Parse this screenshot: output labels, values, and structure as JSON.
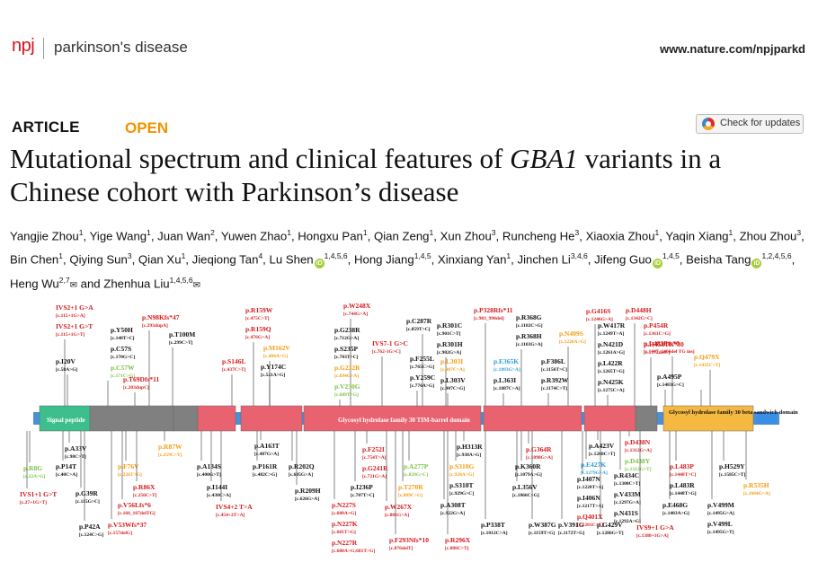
{
  "header": {
    "logo": "npj",
    "journal": "parkinson's disease",
    "url": "www.nature.com/npjparkd"
  },
  "article": {
    "type": "ARTICLE",
    "access": "OPEN",
    "check_updates": "Check for updates"
  },
  "title_parts": [
    "Mutational spectrum and clinical features of ",
    "GBA1",
    " variants in a Chinese cohort with Parkinson’s disease"
  ],
  "authors": [
    {
      "name": "Yangjie Zhou",
      "aff": "1"
    },
    {
      "name": "Yige Wang",
      "aff": "1"
    },
    {
      "name": "Juan Wan",
      "aff": "2"
    },
    {
      "name": "Yuwen Zhao",
      "aff": "1"
    },
    {
      "name": "Hongxu Pan",
      "aff": "1"
    },
    {
      "name": "Qian Zeng",
      "aff": "1"
    },
    {
      "name": "Xun Zhou",
      "aff": "3"
    },
    {
      "name": "Runcheng He",
      "aff": "3"
    },
    {
      "name": "Xiaoxia Zhou",
      "aff": "1"
    },
    {
      "name": "Yaqin Xiang",
      "aff": "1"
    },
    {
      "name": "Zhou Zhou",
      "aff": "3"
    },
    {
      "name": "Bin Chen",
      "aff": "1"
    },
    {
      "name": "Qiying Sun",
      "aff": "3"
    },
    {
      "name": "Qian Xu",
      "aff": "1"
    },
    {
      "name": "Jieqiong Tan",
      "aff": "4"
    },
    {
      "name": "Lu Shen",
      "aff": "1,4,5,6",
      "orcid": true
    },
    {
      "name": "Hong Jiang",
      "aff": "1,4,5"
    },
    {
      "name": "Xinxiang Yan",
      "aff": "1"
    },
    {
      "name": "Jinchen Li",
      "aff": "3,4,6"
    },
    {
      "name": "Jifeng Guo",
      "aff": "1,4,5",
      "orcid": true
    },
    {
      "name": "Beisha Tang",
      "aff": "1,2,4,5,6",
      "orcid": true
    },
    {
      "name": "Heng Wu",
      "aff": "2,7",
      "mail": true
    },
    {
      "name": "Zhenhua Liu",
      "aff": "1,4,5,6",
      "mail": true,
      "last": true
    }
  ],
  "author_sep": ", ",
  "author_and": "and ",
  "figure": {
    "colors": {
      "red": "#d7191c",
      "black": "#111111",
      "orange": "#f39c12",
      "green": "#7ac143",
      "blue": "#2a9fd6",
      "teal": "#3cbf8c",
      "gray": "#808080",
      "pink": "#e8626f",
      "ochre": "#f5b942",
      "steel": "#4a90d9"
    },
    "domains": [
      {
        "label": "Signal peptide",
        "color": "teal"
      },
      {
        "label": "Glycosyl hydrolase family 30 TIM-barrel domain",
        "color": "pink"
      },
      {
        "label": "Glycosyl hydrolase family 30 beta sandwich domain",
        "color": "ochre"
      }
    ],
    "variants_top": [
      {
        "p": "IVS2+1 G>A",
        "c": "[c.115+1G>A]",
        "col": "red"
      },
      {
        "p": "IVS2+1 G>T",
        "c": "[c.115+1G>T]",
        "col": "red"
      },
      {
        "p": "p.I20V",
        "c": "[c.58A>G]",
        "col": "black"
      },
      {
        "p": "p.Y50H",
        "c": "[c.148T>C]",
        "col": "black"
      },
      {
        "p": "p.C57S",
        "c": "[c.170G>C]",
        "col": "black"
      },
      {
        "p": "p.C57W",
        "c": "[c.171C>G]",
        "col": "green"
      },
      {
        "p": "p.N98Kfs*47",
        "c": "[c.293dupA]",
        "col": "red"
      },
      {
        "p": "p.T100M",
        "c": "[c.299C>T]",
        "col": "black"
      },
      {
        "p": "p.T69Dfs*11",
        "c": "[c.203dupC]",
        "col": "red"
      },
      {
        "p": "p.R159W",
        "c": "[c.475C>T]",
        "col": "red"
      },
      {
        "p": "p.R159Q",
        "c": "[c.476G>A]",
        "col": "red"
      },
      {
        "p": "p.M162V",
        "c": "[c.484A>G]",
        "col": "orange"
      },
      {
        "p": "p.S146L",
        "c": "[c.437C>T]",
        "col": "red"
      },
      {
        "p": "p.Y174C",
        "c": "[c.521A>G]",
        "col": "black"
      },
      {
        "p": "p.W248X",
        "c": "[c.744G>A]",
        "col": "red"
      },
      {
        "p": "p.G238R",
        "c": "[c.712G>A]",
        "col": "black"
      },
      {
        "p": "p.S235P",
        "c": "[c.703T>C]",
        "col": "black"
      },
      {
        "p": "p.G232R",
        "c": "[c.694G>A]",
        "col": "orange"
      },
      {
        "p": "p.V230G",
        "c": "[c.689T>G]",
        "col": "green"
      },
      {
        "p": "p.C287R",
        "c": "[c.859T>C]",
        "col": "black"
      },
      {
        "p": "IVS7-1 G>C",
        "c": "[c.762-1G>C]",
        "col": "red"
      },
      {
        "p": "p.F255L",
        "c": "[c.765C>G]",
        "col": "black"
      },
      {
        "p": "p.Y259C",
        "c": "[c.776A>G]",
        "col": "black"
      },
      {
        "p": "p.R301C",
        "c": "[c.901C>T]",
        "col": "black"
      },
      {
        "p": "p.R301H",
        "c": "[c.902G>A]",
        "col": "black"
      },
      {
        "p": "p.L303I",
        "c": "[c.907C>A]",
        "col": "orange"
      },
      {
        "p": "p.L303V",
        "c": "[c.907C>G]",
        "col": "black"
      },
      {
        "p": "p.P328Rfs*11",
        "c": "[c.983_990del]",
        "col": "red"
      },
      {
        "p": "p.R368G",
        "c": "[c.1102C>G]",
        "col": "black"
      },
      {
        "p": "p.R368H",
        "c": "[c.1103G>A]",
        "col": "black"
      },
      {
        "p": "p.E365K",
        "c": "[c.1093G>A]",
        "col": "blue"
      },
      {
        "p": "p.L363I",
        "c": "[c.1087C>A]",
        "col": "black"
      },
      {
        "p": "p.F386L",
        "c": "[c.1156T>C]",
        "col": "black"
      },
      {
        "p": "p.R392W",
        "c": "[c.1174C>T]",
        "col": "black"
      },
      {
        "p": "p.N409S",
        "c": "[c.1226A>G]",
        "col": "orange"
      },
      {
        "p": "p.G416S",
        "c": "[c.1246G>A]",
        "col": "red"
      },
      {
        "p": "p.W417R",
        "c": "[c.1249T>A]",
        "col": "black"
      },
      {
        "p": "p.N421D",
        "c": "[c.1261A>G]",
        "col": "black"
      },
      {
        "p": "p.L422R",
        "c": "[c.1265T>G]",
        "col": "black"
      },
      {
        "p": "p.N425K",
        "c": "[c.1275C>A]",
        "col": "black"
      },
      {
        "p": "p.D448H",
        "c": "[c.1342G>C]",
        "col": "red"
      },
      {
        "p": "p.P454R",
        "c": "[c.1361C>G]",
        "col": "red"
      },
      {
        "p": "p.H458Tfs*30",
        "c": "[c.1372delC]",
        "col": "red"
      },
      {
        "p": "p.L483Pfs*0",
        "c": "[c.1447_1466del TG ins]",
        "col": "red"
      },
      {
        "p": "p.Q479X",
        "c": "[c.1435C>T]",
        "col": "orange"
      },
      {
        "p": "p.A495P",
        "c": "[c.1483G>C]",
        "col": "black"
      }
    ],
    "variants_bottom": [
      {
        "p": "p.R8G",
        "c": "[c.22A>G]",
        "col": "green"
      },
      {
        "p": "p.A33V",
        "c": "[c.98C>T]",
        "col": "black"
      },
      {
        "p": "p.P14T",
        "c": "[c.40C>A]",
        "col": "black"
      },
      {
        "p": "p.G39R",
        "c": "[c.115G>C]",
        "col": "black"
      },
      {
        "p": "IVS1+1 G>T",
        "c": "[c.27+1G>T]",
        "col": "red"
      },
      {
        "p": "p.P42A",
        "c": "[c.124C>G]",
        "col": "black"
      },
      {
        "p": "p.F76V",
        "c": "[c.226T>G]",
        "col": "orange"
      },
      {
        "p": "p.R86X",
        "c": "[c.256C>T]",
        "col": "red"
      },
      {
        "p": "p.V56Lfs*6",
        "c": "[c.166_167delTG]",
        "col": "red"
      },
      {
        "p": "p.V53Wfs*37",
        "c": "[c.157delG]",
        "col": "red"
      },
      {
        "p": "p.R87W",
        "c": "[c.259C>T]",
        "col": "orange"
      },
      {
        "p": "p.A134S",
        "c": "[c.400G>T]",
        "col": "black"
      },
      {
        "p": "p.I144I",
        "c": "[c.430C>A]",
        "col": "black"
      },
      {
        "p": "IVS4+2 T>A",
        "c": "[c.454+2T>A]",
        "col": "red"
      },
      {
        "p": "p.A163T",
        "c": "[c.487G>A]",
        "col": "black"
      },
      {
        "p": "p.P161R",
        "c": "[c.482C>G]",
        "col": "black"
      },
      {
        "p": "p.R202Q",
        "c": "[c.605G>A]",
        "col": "black"
      },
      {
        "p": "p.R209H",
        "c": "[c.626G>A]",
        "col": "black"
      },
      {
        "p": "p.N227S",
        "c": "[c.680A>G]",
        "col": "red"
      },
      {
        "p": "p.N227K",
        "c": "[c.681T>G]",
        "col": "red"
      },
      {
        "p": "p.N227R",
        "c": "[c.680A>G;681T>G]",
        "col": "red"
      },
      {
        "p": "p.F252I",
        "c": "[c.754T>A]",
        "col": "red"
      },
      {
        "p": "p.G241R",
        "c": "[c.721G>A]",
        "col": "red"
      },
      {
        "p": "p.I236P",
        "c": "[c.707T>C]",
        "col": "black"
      },
      {
        "p": "p.A277P",
        "c": "[c.829G>C]",
        "col": "green"
      },
      {
        "p": "p.T270R",
        "c": "[c.809C>G]",
        "col": "orange"
      },
      {
        "p": "p.W267X",
        "c": "[c.801G>A]",
        "col": "red"
      },
      {
        "p": "p.F293Nfs*10",
        "c": "[c.876delT]",
        "col": "red"
      },
      {
        "p": "p.H313R",
        "c": "[c.938A>G]",
        "col": "black"
      },
      {
        "p": "p.S310G",
        "c": "[c.928A>G]",
        "col": "orange"
      },
      {
        "p": "p.S310T",
        "c": "[c.929G>C]",
        "col": "black"
      },
      {
        "p": "p.A308T",
        "c": "[c.922G>A]",
        "col": "black"
      },
      {
        "p": "p.R296X",
        "c": "[c.886C>T]",
        "col": "red"
      },
      {
        "p": "p.P338T",
        "c": "[c.1012C>A]",
        "col": "black"
      },
      {
        "p": "p.G364R",
        "c": "[c.1090G>A]",
        "col": "red"
      },
      {
        "p": "p.K360R",
        "c": "[c.1079A>G]",
        "col": "black"
      },
      {
        "p": "p.L356V",
        "c": "[c.1066C>G]",
        "col": "black"
      },
      {
        "p": "p.W387G",
        "c": "[c.1159T>G]",
        "col": "black"
      },
      {
        "p": "p.V391G",
        "c": "[c.1172T>G]",
        "col": "black"
      },
      {
        "p": "p.A423V",
        "c": "[c.1268C>T]",
        "col": "black"
      },
      {
        "p": "p.E427K",
        "c": "[c.1279G>A]",
        "col": "blue"
      },
      {
        "p": "p.I407N",
        "c": "[c.1220T>A]",
        "col": "black"
      },
      {
        "p": "p.I406N",
        "c": "[c.1217T>A]",
        "col": "black"
      },
      {
        "p": "p.Q401X",
        "c": "[c.1201C>T]",
        "col": "red"
      },
      {
        "p": "p.G429V",
        "c": "[c.1286G>T]",
        "col": "black"
      },
      {
        "p": "p.D438N",
        "c": "[c.1312G>A]",
        "col": "red"
      },
      {
        "p": "p.D438Y",
        "c": "[c.1312G>T]",
        "col": "green"
      },
      {
        "p": "p.R434C",
        "c": "[c.1300C>T]",
        "col": "black"
      },
      {
        "p": "p.V433M",
        "c": "[c.1297G>A]",
        "col": "black"
      },
      {
        "p": "p.N431S",
        "c": "[c.1292A>G]",
        "col": "black"
      },
      {
        "p": "IVS9+1 G>A",
        "c": "[c.1388+1G>A]",
        "col": "red"
      },
      {
        "p": "p.L483P",
        "c": "[c.1448T>C]",
        "col": "red"
      },
      {
        "p": "p.L483R",
        "c": "[c.1448T>G]",
        "col": "black"
      },
      {
        "p": "p.E468G",
        "c": "[c.1403A>G]",
        "col": "black"
      },
      {
        "p": "p.H529Y",
        "c": "[c.1585C>T]",
        "col": "black"
      },
      {
        "p": "p.V499M",
        "c": "[c.1495G>A]",
        "col": "black"
      },
      {
        "p": "p.V499L",
        "c": "[c.1495G>T]",
        "col": "black"
      },
      {
        "p": "p.R535H",
        "c": "[c.1604G>A]",
        "col": "orange"
      }
    ]
  }
}
